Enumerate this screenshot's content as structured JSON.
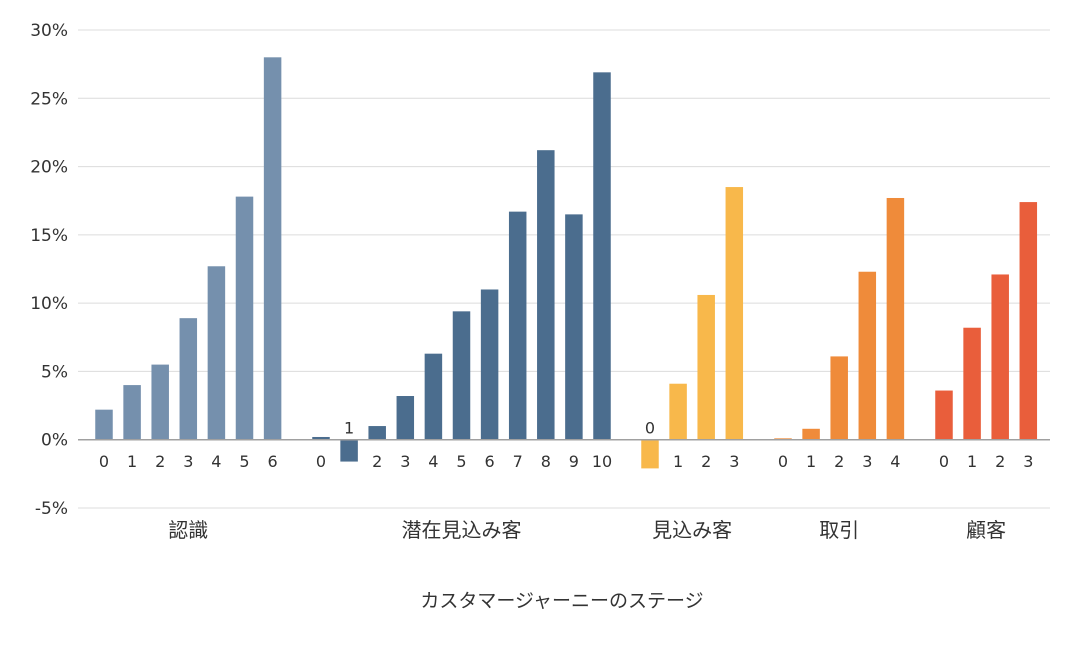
{
  "chart_data": {
    "type": "bar",
    "title": "",
    "xlabel": "カスタマージャーニーのステージ",
    "ylabel": "",
    "ylim": [
      -5,
      30
    ],
    "yticks": [
      "30%",
      "25%",
      "20%",
      "15%",
      "10%",
      "5%",
      "0%",
      "-5%"
    ],
    "ytick_values": [
      30,
      25,
      20,
      15,
      10,
      5,
      0,
      -5
    ],
    "grid": true,
    "groups": [
      {
        "name": "認識",
        "color": "#7590AD",
        "categories": [
          "0",
          "1",
          "2",
          "3",
          "4",
          "5",
          "6"
        ],
        "values": [
          2.2,
          4.0,
          5.5,
          8.9,
          12.7,
          17.8,
          28.0
        ]
      },
      {
        "name": "潜在見込み客",
        "color": "#4B6D8E",
        "categories": [
          "0",
          "1",
          "2",
          "3",
          "4",
          "5",
          "6",
          "7",
          "8",
          "9",
          "10"
        ],
        "values": [
          0.2,
          -1.6,
          1.0,
          3.2,
          6.3,
          9.4,
          11.0,
          16.7,
          21.2,
          16.5,
          26.9
        ]
      },
      {
        "name": "見込み客",
        "color": "#F8B84B",
        "categories": [
          "0",
          "1",
          "2",
          "3"
        ],
        "values": [
          -2.1,
          4.1,
          10.6,
          18.5
        ]
      },
      {
        "name": "取引",
        "color": "#EF8B3A",
        "categories": [
          "0",
          "1",
          "2",
          "3",
          "4"
        ],
        "values": [
          0.1,
          0.8,
          6.1,
          12.3,
          17.7
        ]
      },
      {
        "name": "顧客",
        "color": "#E95E3B",
        "categories": [
          "0",
          "1",
          "2",
          "3"
        ],
        "values": [
          3.6,
          8.2,
          12.1,
          17.4
        ]
      }
    ]
  }
}
